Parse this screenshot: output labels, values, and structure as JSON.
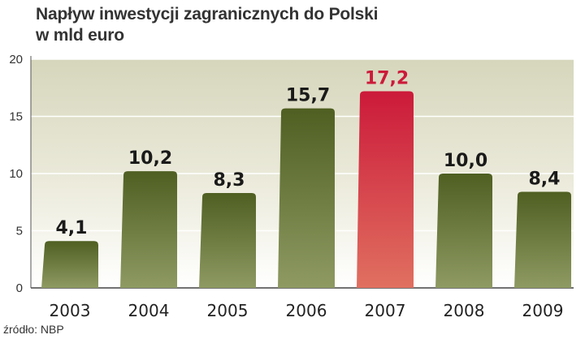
{
  "header": {
    "title_line1": "Napływ inwestycji zagranicznych do Polski",
    "title_line2": "w mld euro"
  },
  "footer": {
    "source": "źródło: NBP"
  },
  "colors": {
    "bar_dark": "#4f5f22",
    "bar_light": "#8e9a62",
    "highlight_dark": "#cc1a3a",
    "highlight_light": "#e07060",
    "highlight_label": "#cc1a3a",
    "band": "#c8c8a8"
  },
  "chart_data": {
    "type": "bar",
    "title": "Napływ inwestycji zagranicznych do Polski",
    "subtitle": "w mld euro",
    "categories": [
      "2003",
      "2004",
      "2005",
      "2006",
      "2007",
      "2008",
      "2009"
    ],
    "values": [
      4.1,
      10.2,
      8.3,
      15.7,
      17.2,
      10.0,
      8.4
    ],
    "value_labels": [
      "4,1",
      "10,2",
      "8,3",
      "15,7",
      "17,2",
      "10,0",
      "8,4"
    ],
    "highlight_index": 4,
    "ylim": [
      0,
      20
    ],
    "yticks": [
      0,
      5,
      10,
      15,
      20
    ],
    "ytick_labels": [
      "0",
      "5",
      "10",
      "15",
      "20"
    ],
    "grid": true,
    "legend": false,
    "xlabel": "",
    "ylabel": ""
  }
}
